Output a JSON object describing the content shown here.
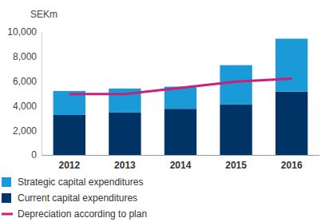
{
  "chart_data": {
    "type": "bar",
    "stacked": true,
    "y_label": "SEKm",
    "categories": [
      "2012",
      "2013",
      "2014",
      "2015",
      "2016"
    ],
    "series": [
      {
        "name": "Strategic capital expenditures",
        "type": "bar",
        "color": "#1a9ad6",
        "values": [
          1950,
          1950,
          1800,
          3200,
          4300
        ]
      },
      {
        "name": "Current capital expenditures",
        "type": "bar",
        "color": "#003466",
        "values": [
          3250,
          3450,
          3750,
          4100,
          5150
        ]
      },
      {
        "name": "Depreciation according to plan",
        "type": "line",
        "color": "#cc1f7a",
        "values": [
          4950,
          4950,
          5450,
          5950,
          6200
        ]
      }
    ],
    "ylim": [
      0,
      10000
    ],
    "yticks": [
      0,
      {
        "value": 2000,
        "label": "2,000"
      },
      {
        "value": 4000,
        "label": "4,000"
      },
      {
        "value": 6000,
        "label": "6,000"
      },
      {
        "value": 8000,
        "label": "8,000"
      },
      {
        "value": 10000,
        "label": "10,000"
      }
    ],
    "legend": "bottom"
  }
}
